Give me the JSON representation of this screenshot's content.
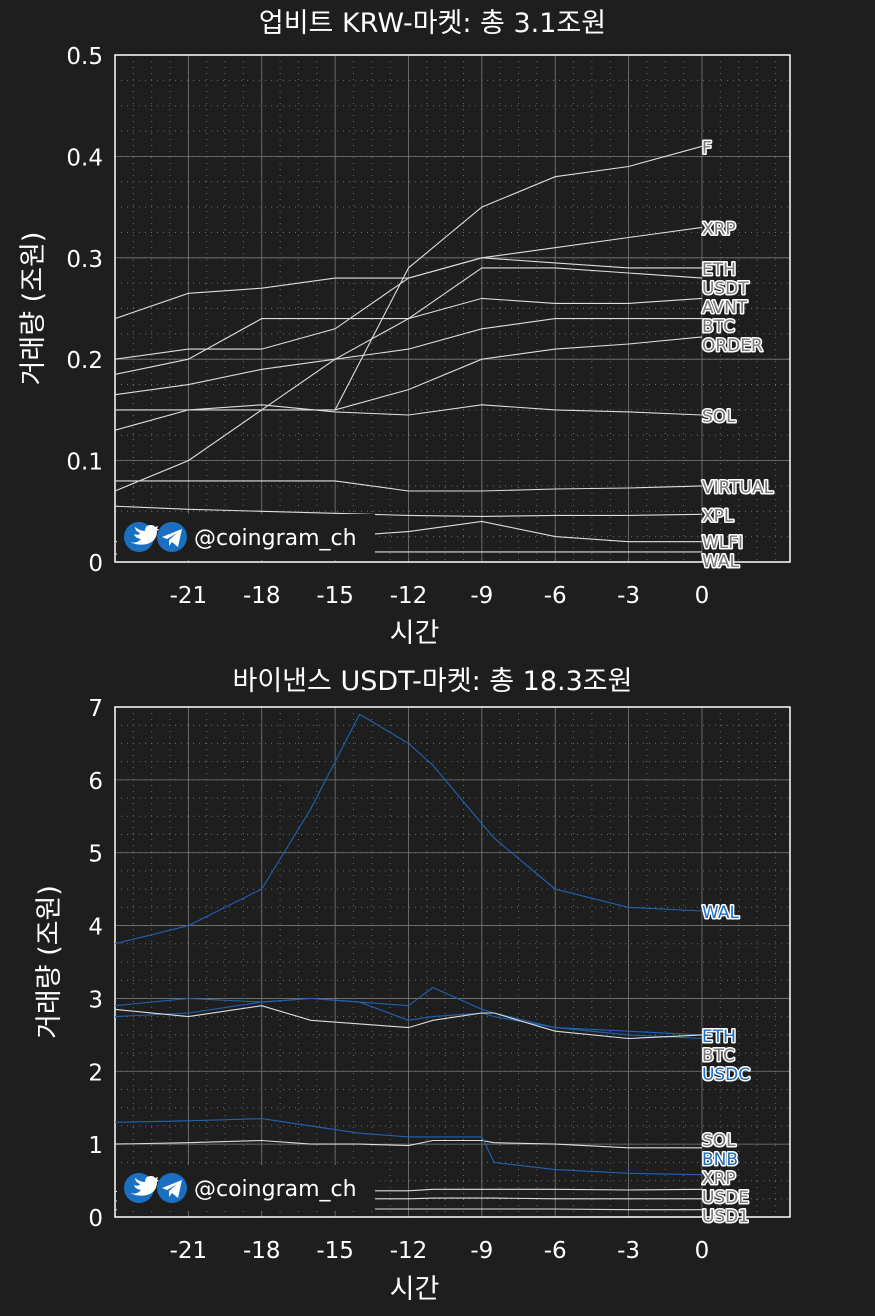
{
  "watermark": {
    "handle": "@coingram_ch",
    "icons": [
      "twitter-icon",
      "telegram-icon"
    ]
  },
  "colors": {
    "background": "#1e1e1e",
    "white_series": "#dddddd",
    "blue_series": "#1f64b4",
    "white_label": "#7a7a7a",
    "blue_label": "#1f6fc0"
  },
  "chart_data": [
    {
      "type": "line",
      "title": "업비트 KRW-마켓: 총 3.1조원",
      "xlabel": "시간",
      "ylabel": "거래량 (조원)",
      "xlim": [
        -24,
        3.6
      ],
      "ylim": [
        0,
        0.5
      ],
      "xticks": [
        -21,
        -18,
        -15,
        -12,
        -9,
        -6,
        -3,
        0
      ],
      "yticks": [
        0,
        0.1,
        0.2,
        0.3,
        0.4,
        0.5
      ],
      "grid": true,
      "x": [
        -24,
        -21,
        -18,
        -15,
        -12,
        -9,
        -6,
        -3,
        0
      ],
      "series": [
        {
          "name": "F",
          "color": "white",
          "values": [
            null,
            null,
            null,
            0.15,
            0.29,
            0.35,
            0.38,
            0.39,
            0.41
          ]
        },
        {
          "name": "XRP",
          "color": "white",
          "values": [
            0.24,
            0.265,
            0.27,
            0.28,
            0.28,
            0.3,
            0.31,
            0.32,
            0.33
          ]
        },
        {
          "name": "ETH",
          "color": "white",
          "values": [
            0.2,
            0.21,
            0.21,
            0.23,
            0.28,
            0.3,
            0.295,
            0.29,
            0.29
          ]
        },
        {
          "name": "USDT",
          "color": "white",
          "values": [
            0.185,
            0.2,
            0.24,
            0.24,
            0.24,
            0.29,
            0.29,
            0.285,
            0.28
          ]
        },
        {
          "name": "AVNT",
          "color": "white",
          "values": [
            0.07,
            0.1,
            0.15,
            0.2,
            0.24,
            0.26,
            0.255,
            0.255,
            0.26
          ]
        },
        {
          "name": "BTC",
          "color": "white",
          "values": [
            0.165,
            0.175,
            0.19,
            0.2,
            0.21,
            0.23,
            0.24,
            0.24,
            0.24
          ]
        },
        {
          "name": "ORDER",
          "color": "white",
          "values": [
            0.13,
            0.15,
            0.15,
            0.15,
            0.17,
            0.2,
            0.21,
            0.215,
            0.222
          ]
        },
        {
          "name": "SOL",
          "color": "white",
          "values": [
            0.15,
            0.15,
            0.155,
            0.148,
            0.145,
            0.155,
            0.15,
            0.148,
            0.145
          ]
        },
        {
          "name": "VIRTUAL",
          "color": "white",
          "values": [
            0.08,
            0.08,
            0.08,
            0.08,
            0.07,
            0.07,
            0.072,
            0.073,
            0.075
          ]
        },
        {
          "name": "XPL",
          "color": "white",
          "values": [
            0.055,
            0.052,
            0.05,
            0.048,
            0.046,
            0.045,
            0.046,
            0.046,
            0.047
          ]
        },
        {
          "name": "WLFI",
          "color": "white",
          "values": [
            0.02,
            0.022,
            0.022,
            0.025,
            0.03,
            0.04,
            0.025,
            0.02,
            0.02
          ]
        },
        {
          "name": "WAL",
          "color": "white",
          "values": [
            0.008,
            0.008,
            0.009,
            0.01,
            0.01,
            0.01,
            0.01,
            0.01,
            0.01
          ]
        }
      ]
    },
    {
      "type": "line",
      "title": "바이낸스 USDT-마켓: 총 18.3조원",
      "xlabel": "시간",
      "ylabel": "거래량 (조원)",
      "xlim": [
        -24,
        3.6
      ],
      "ylim": [
        0,
        7
      ],
      "xticks": [
        -21,
        -18,
        -15,
        -12,
        -9,
        -6,
        -3,
        0
      ],
      "yticks": [
        0,
        1,
        2,
        3,
        4,
        5,
        6,
        7
      ],
      "grid": true,
      "x": [
        -24,
        -21,
        -18,
        -16,
        -14,
        -12,
        -11,
        -9,
        -8.5,
        -6,
        -3,
        0
      ],
      "series": [
        {
          "name": "WAL",
          "color": "blue",
          "values": [
            3.75,
            4.0,
            4.5,
            5.6,
            6.9,
            6.5,
            6.2,
            5.4,
            5.2,
            4.5,
            4.25,
            4.2
          ]
        },
        {
          "name": "USDC",
          "color": "blue",
          "values": [
            2.75,
            2.8,
            2.95,
            3.0,
            2.95,
            2.9,
            3.15,
            2.85,
            2.8,
            2.6,
            2.5,
            2.45
          ]
        },
        {
          "name": "ETH",
          "color": "blue",
          "values": [
            2.9,
            3.0,
            2.95,
            3.0,
            2.95,
            2.7,
            2.75,
            2.8,
            2.75,
            2.6,
            2.55,
            2.5
          ]
        },
        {
          "name": "BTC",
          "color": "white",
          "values": [
            2.85,
            2.75,
            2.9,
            2.7,
            2.65,
            2.6,
            2.7,
            2.8,
            2.8,
            2.55,
            2.45,
            2.5
          ]
        },
        {
          "name": "SOL",
          "color": "white",
          "values": [
            1.0,
            1.02,
            1.05,
            1.0,
            1.0,
            0.98,
            1.05,
            1.05,
            1.02,
            1.0,
            0.95,
            0.95
          ]
        },
        {
          "name": "BNB",
          "color": "blue",
          "values": [
            1.3,
            1.32,
            1.35,
            1.25,
            1.15,
            1.1,
            1.1,
            1.1,
            0.75,
            0.65,
            0.6,
            0.58
          ]
        },
        {
          "name": "XRP",
          "color": "white",
          "values": [
            0.35,
            0.36,
            0.38,
            0.36,
            0.36,
            0.36,
            0.38,
            0.38,
            0.38,
            0.38,
            0.37,
            0.38
          ]
        },
        {
          "name": "USDE",
          "color": "white",
          "values": [
            0.22,
            0.22,
            0.23,
            0.24,
            0.25,
            0.25,
            0.26,
            0.26,
            0.26,
            0.25,
            0.25,
            0.25
          ]
        },
        {
          "name": "USD1",
          "color": "white",
          "values": [
            0.1,
            0.1,
            0.1,
            0.11,
            0.11,
            0.11,
            0.11,
            0.11,
            0.11,
            0.11,
            0.1,
            0.1
          ]
        }
      ]
    }
  ]
}
